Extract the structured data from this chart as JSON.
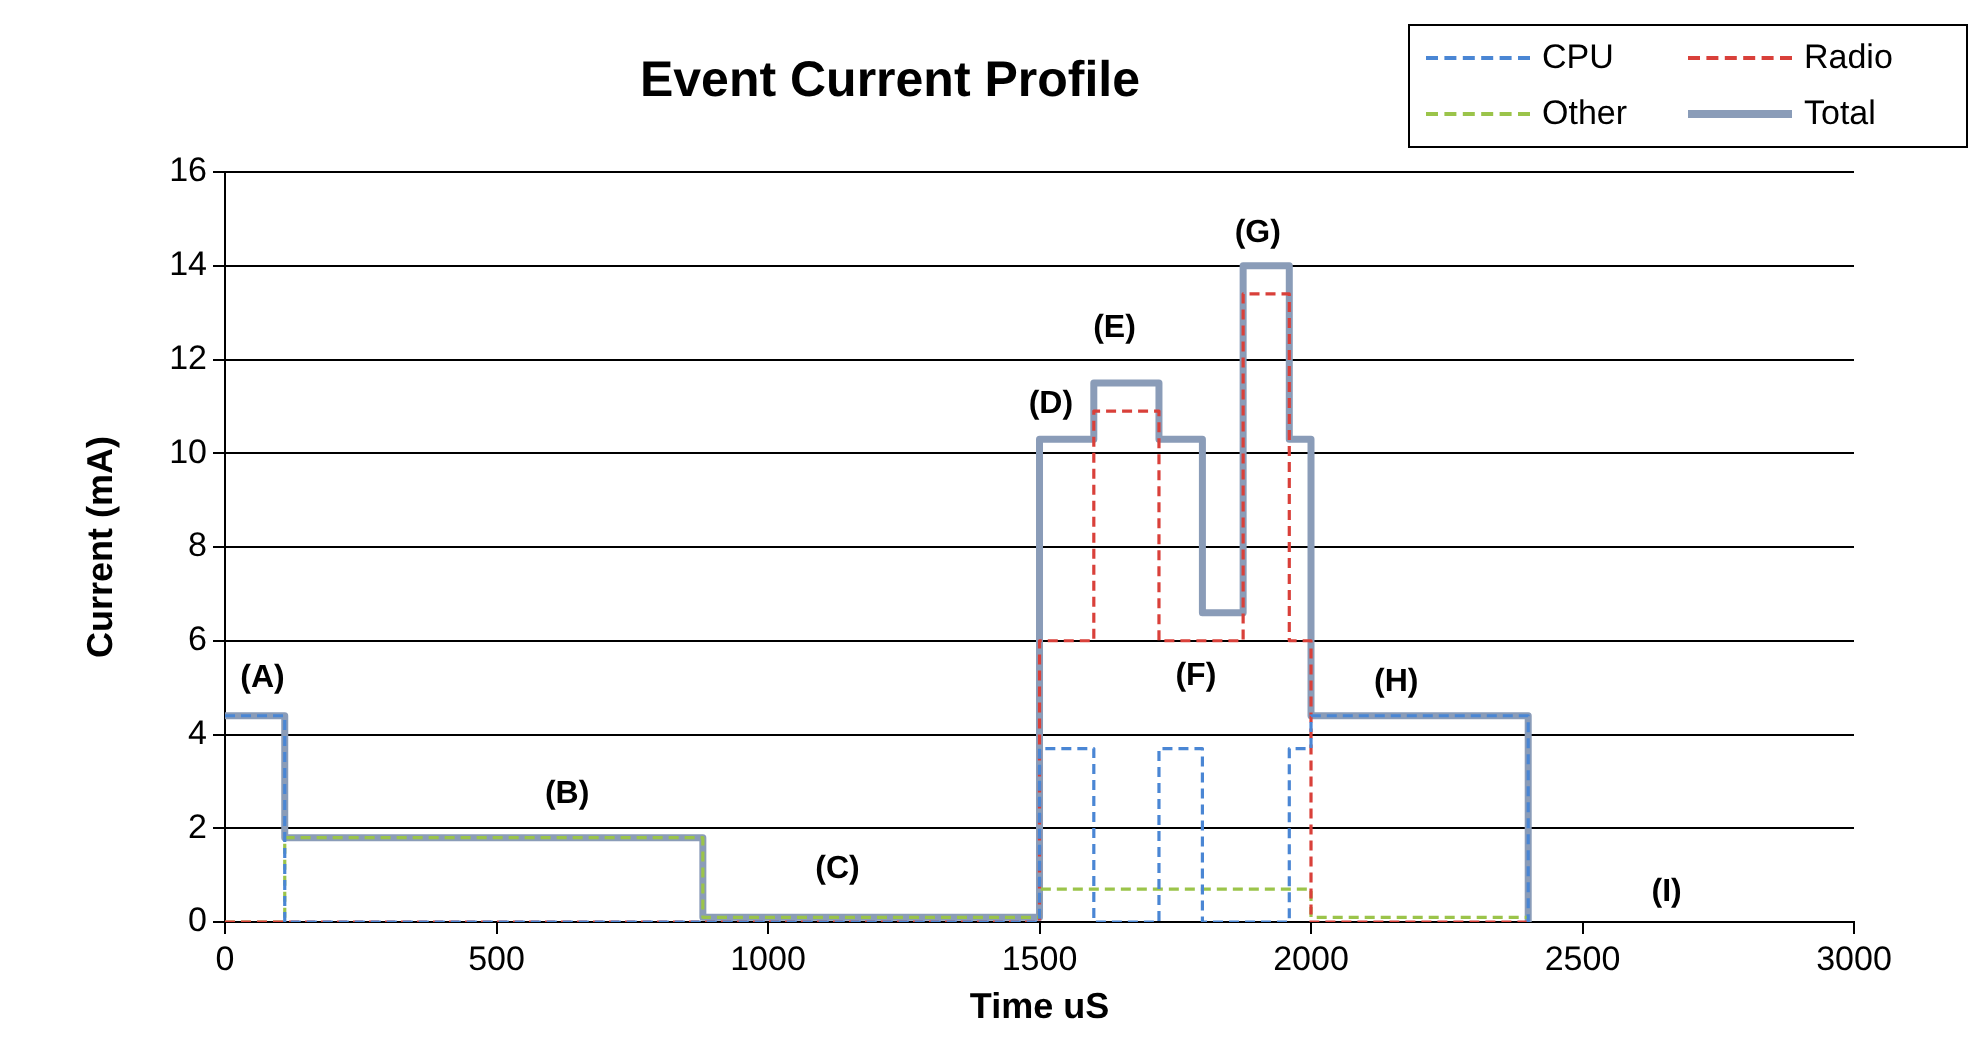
{
  "chart_data": {
    "type": "step",
    "title": "Event Current Profile",
    "xlabel": "Time uS",
    "ylabel": "Current (mA)",
    "xlim": [
      0,
      3000
    ],
    "xticks": [
      0,
      500,
      1000,
      1500,
      2000,
      2500,
      3000
    ],
    "ylim": [
      0,
      16
    ],
    "yticks": [
      0,
      2,
      4,
      6,
      8,
      10,
      12,
      14,
      16
    ],
    "grid": "y",
    "legend": "top right",
    "marker": "none",
    "series": [
      {
        "name": "CPU",
        "color": "#4a86d4",
        "line_style": "dashed",
        "x": [
          0,
          110,
          1500,
          1600,
          1720,
          1800,
          1960,
          2000,
          2400
        ],
        "values": [
          4.4,
          0,
          3.7,
          0,
          3.7,
          0,
          3.7,
          4.4,
          0
        ]
      },
      {
        "name": "Radio",
        "color": "#d9403a",
        "line_style": "dashed",
        "x": [
          0,
          1500,
          1600,
          1720,
          1875,
          1960,
          2000,
          2400
        ],
        "values": [
          0,
          6,
          10.9,
          6,
          13.4,
          6,
          0,
          0
        ]
      },
      {
        "name": "Other",
        "color": "#9bc44a",
        "line_style": "dashed",
        "x": [
          0,
          110,
          880,
          1500,
          2000,
          2400
        ],
        "values": [
          0,
          1.8,
          0.1,
          0.7,
          0.1,
          0.1
        ]
      },
      {
        "name": "Total",
        "color": "#8a9cb8",
        "line_style": "solid",
        "x": [
          0,
          110,
          880,
          1500,
          1600,
          1720,
          1800,
          1875,
          1960,
          2000,
          2400
        ],
        "values": [
          4.4,
          1.8,
          0.1,
          10.3,
          11.5,
          10.3,
          6.6,
          14,
          10.3,
          4.4,
          0
        ]
      }
    ],
    "annotations": [
      "(A)",
      "(B)",
      "(C)",
      "(D)",
      "(E)",
      "(F)",
      "(G)",
      "(H)",
      "(I)"
    ]
  }
}
